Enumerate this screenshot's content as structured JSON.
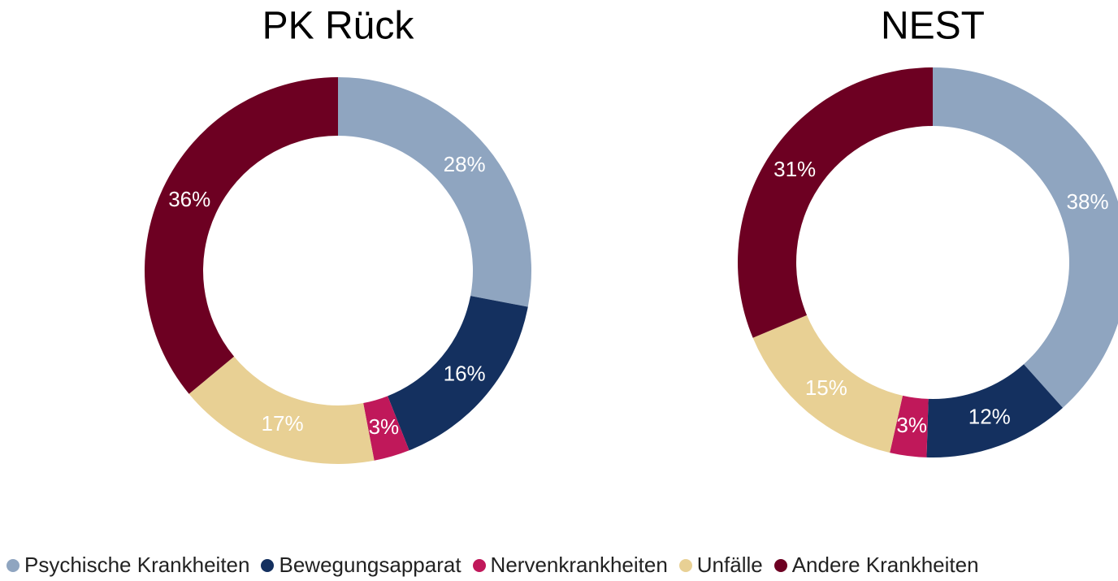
{
  "legend": {
    "items": [
      {
        "name": "Psychische Krankheiten",
        "color": "#8fa5c0"
      },
      {
        "name": "Bewegungsapparat",
        "color": "#14305f"
      },
      {
        "name": "Nervenkrankheiten",
        "color": "#c0185a"
      },
      {
        "name": "Unfälle",
        "color": "#e8d094"
      },
      {
        "name": "Andere Krankheiten",
        "color": "#6d0022"
      }
    ]
  },
  "chart_data": [
    {
      "type": "pie",
      "title": "PK Rück",
      "values": [
        28,
        16,
        3,
        17,
        36
      ],
      "value_labels": [
        "28%",
        "16%",
        "3%",
        "17%",
        "36%"
      ]
    },
    {
      "type": "pie",
      "title": "NEST",
      "values": [
        38,
        12,
        3,
        15,
        31
      ],
      "value_labels": [
        "38%",
        "12%",
        "3%",
        "15%",
        "31%"
      ]
    }
  ]
}
